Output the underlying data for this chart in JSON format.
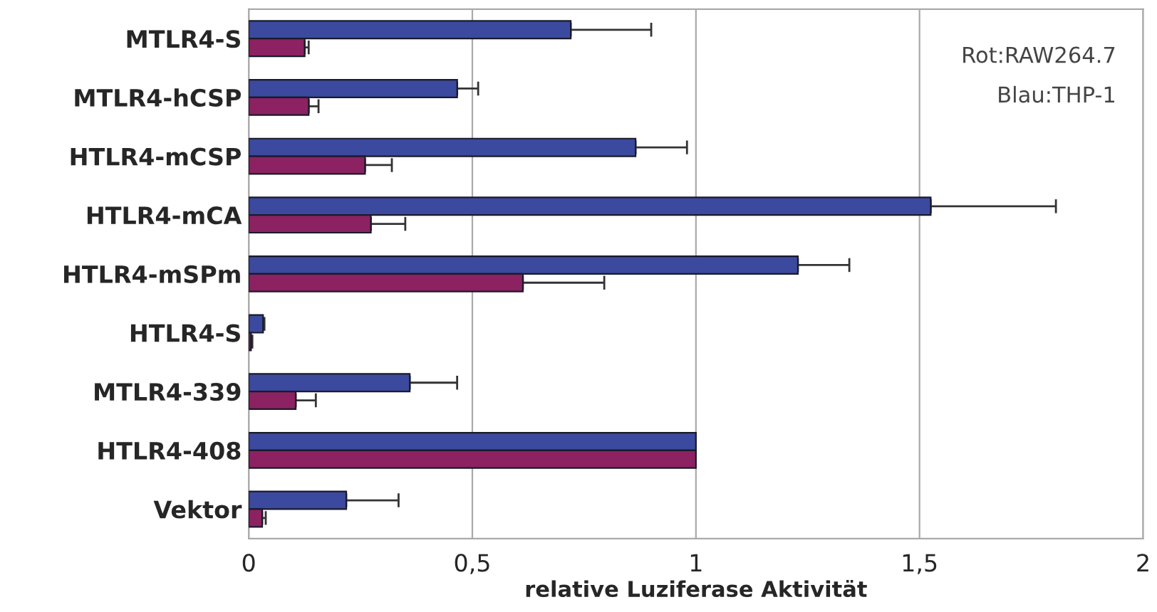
{
  "chart_data": {
    "type": "bar",
    "orientation": "horizontal",
    "xlabel": "relative Luziferase Aktivität",
    "categories": [
      "MTLR4-S",
      "MTLR4-hCSP",
      "HTLR4-mCSP",
      "HTLR4-mCA",
      "HTLR4-mSPm",
      "HTLR4-S",
      "MTLR4-339",
      "HTLR4-408",
      "Vektor"
    ],
    "series": [
      {
        "color": "#3b4a9e",
        "values": [
          0.72,
          0.466,
          0.865,
          1.525,
          1.228,
          0.032,
          0.36,
          1,
          0.218
        ],
        "errors": [
          [
            0.72,
            0.9
          ],
          [
            0.466,
            0.513
          ],
          [
            0.865,
            0.98
          ],
          [
            1.525,
            1.805
          ],
          [
            1.228,
            1.343
          ],
          [
            0.032,
            0.035
          ],
          [
            0.36,
            0.466
          ],
          null,
          [
            0.218,
            0.335
          ]
        ]
      },
      {
        "color": "#8c2262",
        "values": [
          0.125,
          0.134,
          0.26,
          0.273,
          0.613,
          0.005,
          0.105,
          1,
          0.03
        ],
        "errors": [
          [
            0.125,
            0.134
          ],
          [
            0.134,
            0.156
          ],
          [
            0.26,
            0.32
          ],
          [
            0.273,
            0.35
          ],
          [
            0.613,
            0.795
          ],
          [
            0.005,
            0.008
          ],
          [
            0.105,
            0.15
          ],
          null,
          [
            0.03,
            0.038
          ]
        ]
      }
    ],
    "xlim": [
      0,
      2
    ],
    "xticks": [
      0,
      {
        "value": 0.5,
        "label": "0,5"
      },
      1,
      {
        "value": 1.5,
        "label": "1,5"
      },
      2
    ],
    "grid": "x",
    "annotations": [
      "Rot:RAW264.7",
      "Blau:THP-1"
    ]
  }
}
